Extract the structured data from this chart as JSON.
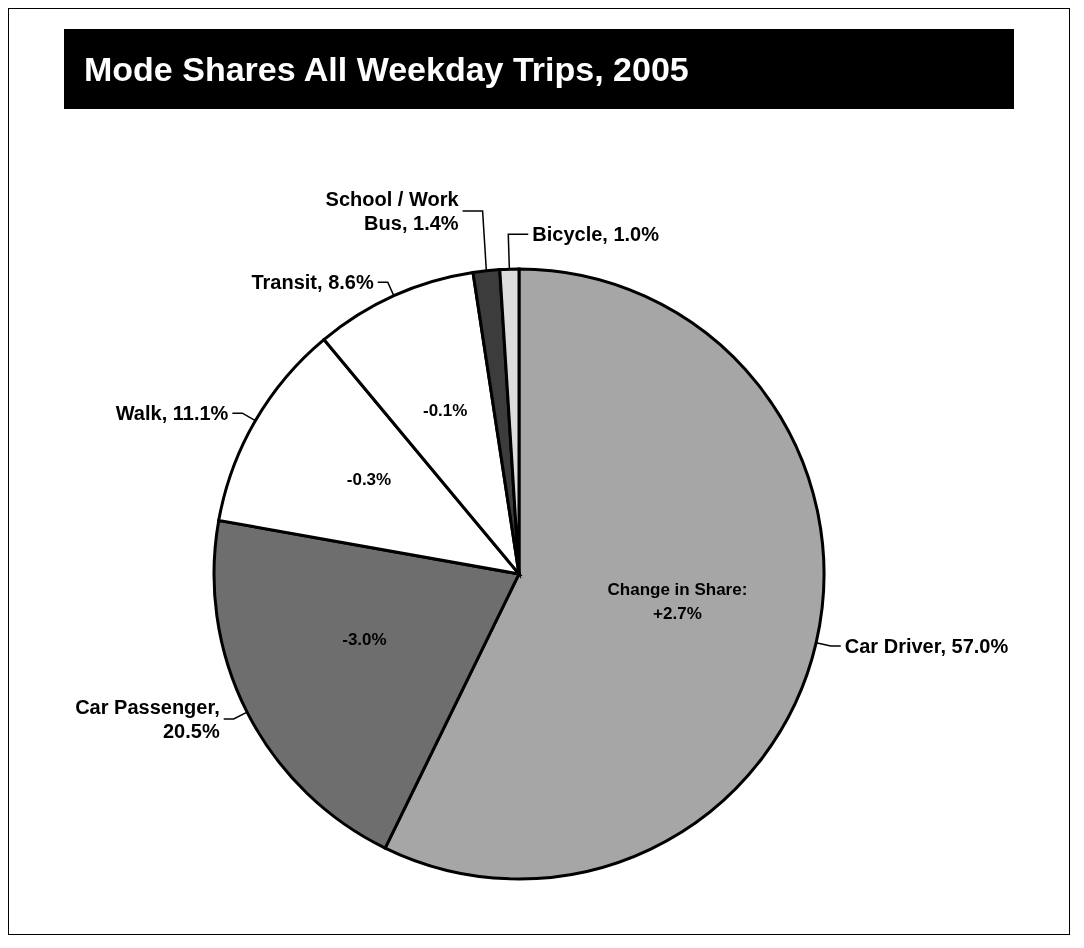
{
  "chart_data": {
    "type": "pie",
    "title": "Mode Shares All Weekday Trips, 2005",
    "categories": [
      "Car Driver, 57.0%",
      "Car Passenger, 20.5%",
      "Walk, 11.1%",
      "Transit, 8.6%",
      "School / Work Bus, 1.4%",
      "Bicycle, 1.0%"
    ],
    "values": [
      57.0,
      20.5,
      11.1,
      8.6,
      1.4,
      1.0
    ],
    "colors": [
      "#a6a6a6",
      "#6e6e6e",
      "#ffffff",
      "#ffffff",
      "#3c3c3c",
      "#dcdcdc"
    ],
    "annotations": [
      "Change in Share:\n+2.7%",
      "-3.0%",
      "-0.3%",
      "-0.1%"
    ],
    "legend": false
  }
}
